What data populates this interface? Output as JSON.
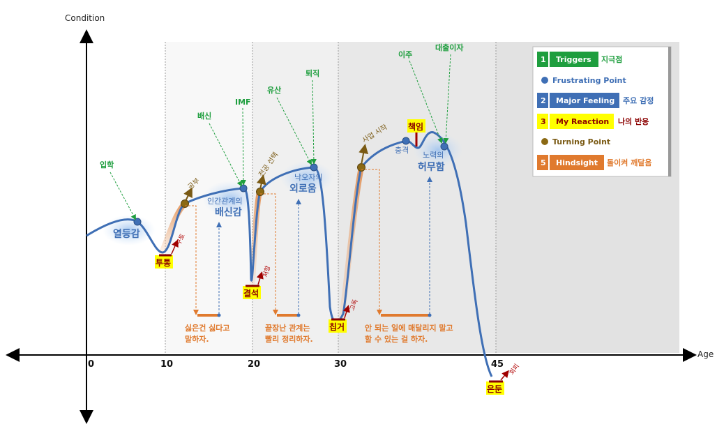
{
  "axes": {
    "y_label": "Condition",
    "x_label": "Age",
    "ticks": [
      "0",
      "10",
      "20",
      "30",
      "45"
    ]
  },
  "triggers": {
    "entrance": "입학",
    "betrayal": "배신",
    "imf": "IMF",
    "miscarriage": "유산",
    "resign": "퇴직",
    "move": "이주",
    "loan": "대출이자"
  },
  "turning_points": {
    "study": "공부",
    "new_major": "전공 선택",
    "business": "사업 시작"
  },
  "feelings": {
    "inferiority": "열등감",
    "betrayal_small": "인간관계의",
    "betrayal_large": "배신감",
    "loneliness_small": "낙오자의",
    "loneliness_large": "외로움",
    "shock": "충격",
    "futility_small": "노력의",
    "futility_large": "허무함"
  },
  "reactions": {
    "fight": "투통",
    "fight_note": "구토",
    "absence": "결석",
    "absence_note": "저항",
    "hole_up": "칩거",
    "hole_up_note": "고독",
    "responsibility": "책임",
    "retire": "은둔",
    "retire_note": "회피"
  },
  "hindsights": {
    "h1_line1": "싫은건 싫다고",
    "h1_line2": "말하자.",
    "h2_line1": "끝장난 관계는",
    "h2_line2": "빨리 정리하자.",
    "h3_line1": "안 되는 일에 매달리지 말고",
    "h3_line2": "할 수 있는 걸 하자."
  },
  "legend": {
    "items": [
      {
        "num": "1",
        "label": "Triggers",
        "kr": "지극점"
      },
      {
        "label": "Frustrating Point"
      },
      {
        "num": "2",
        "label": "Major Feeling",
        "kr": "주요 감정"
      },
      {
        "num": "3",
        "label": "My Reaction",
        "kr": "나의 반응"
      },
      {
        "label": "Turning Point"
      },
      {
        "num": "5",
        "label": "Hindsight",
        "kr": "돌이켜 깨달음"
      }
    ]
  },
  "colors": {
    "curve": "#3f6fb5",
    "trigger": "#1e9e3e",
    "turning": "#8b6914",
    "hindsight": "#e07a2e",
    "reaction_bg": "#ffff00",
    "reaction_text": "#8b0000"
  }
}
